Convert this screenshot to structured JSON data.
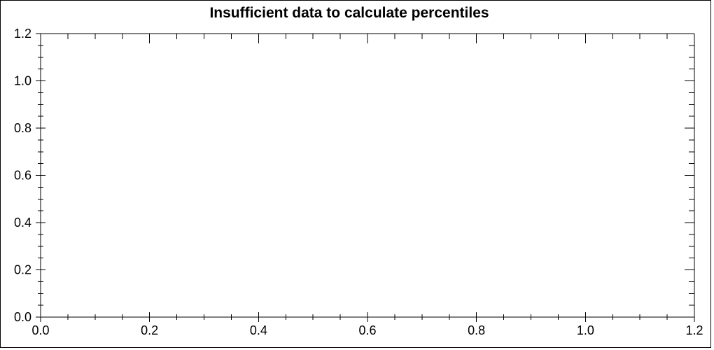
{
  "chart_data": {
    "type": "line",
    "title": "Insufficient data to calculate percentiles",
    "series": [],
    "xlabel": "",
    "ylabel": "",
    "xlim": [
      0.0,
      1.2
    ],
    "ylim": [
      0.0,
      1.2
    ],
    "grid": false,
    "legend": false,
    "frame": "box",
    "x_axis": {
      "major_tick_values": [
        0.0,
        0.2,
        0.4,
        0.6,
        0.8,
        1.0,
        1.2
      ],
      "major_tick_labels": [
        "0.0",
        "0.2",
        "0.4",
        "0.6",
        "0.8",
        "1.0",
        "1.2"
      ],
      "minor_tick_step": 0.05
    },
    "y_axis": {
      "major_tick_values": [
        0.0,
        0.2,
        0.4,
        0.6,
        0.8,
        1.0,
        1.2
      ],
      "major_tick_labels": [
        "0.0",
        "0.2",
        "0.4",
        "0.6",
        "0.8",
        "1.0",
        "1.2"
      ],
      "minor_tick_step": 0.05
    },
    "colors": {
      "background": "#ffffff",
      "axis": "#000000",
      "text": "#000000"
    }
  }
}
